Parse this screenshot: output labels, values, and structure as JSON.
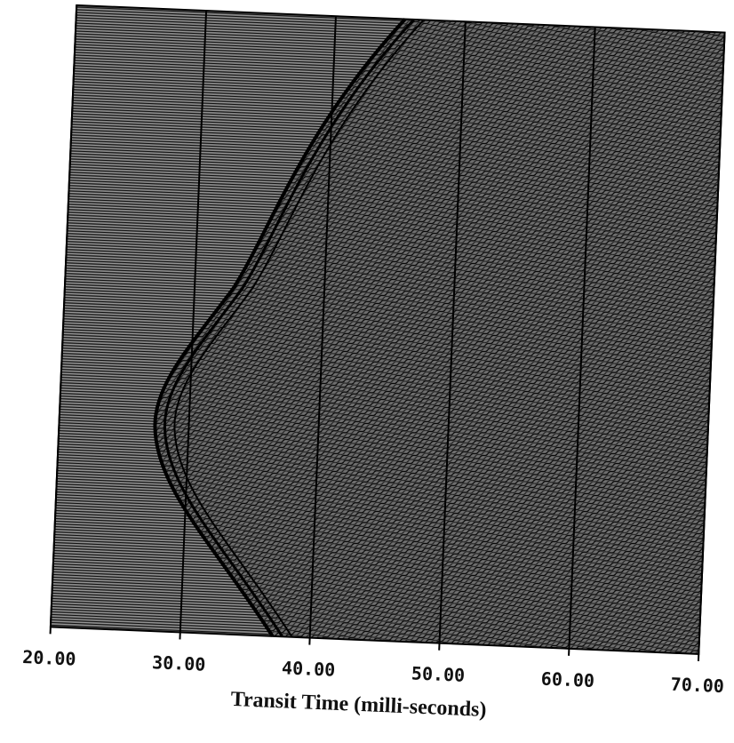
{
  "chart_data": {
    "type": "seismic-section",
    "x_label": "Transit Time (milli-seconds)",
    "xlim": [
      20,
      70
    ],
    "xticks": [
      {
        "value": 20,
        "label": "20.00"
      },
      {
        "value": 30,
        "label": "30.00"
      },
      {
        "value": 40,
        "label": "40.00"
      },
      {
        "value": 50,
        "label": "50.00"
      },
      {
        "value": 60,
        "label": "60.00"
      },
      {
        "value": 70,
        "label": "70.00"
      }
    ],
    "grid": true
  }
}
